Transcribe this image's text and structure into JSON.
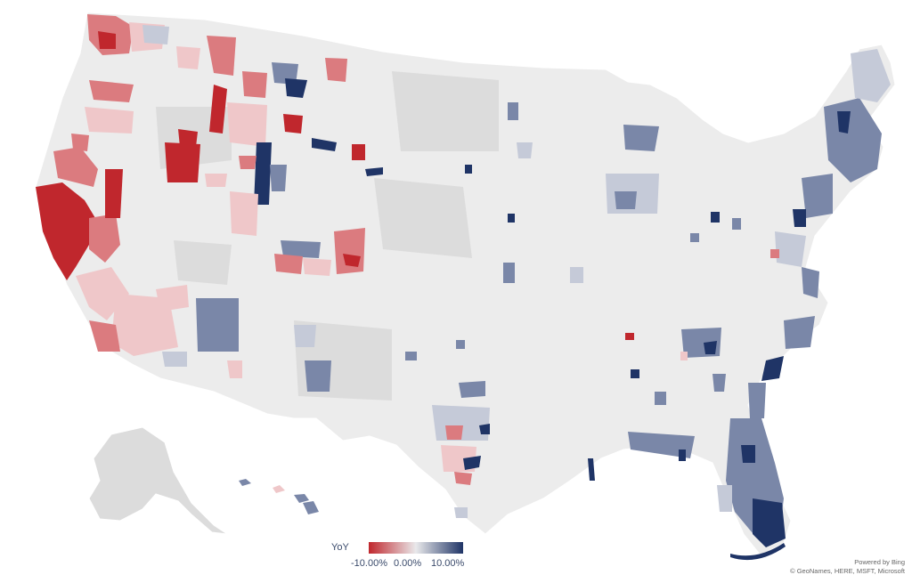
{
  "map": {
    "region": "United States",
    "measure": "YoY"
  },
  "legend": {
    "title": "YoY",
    "ticks": [
      "-10.00%",
      "0.00%",
      "10.00%"
    ],
    "colors": {
      "negative": "#c0272d",
      "neutral": "#e9e9eb",
      "positive": "#1f3466"
    }
  },
  "colors": {
    "no_data": "#dcdcdc",
    "base_land": "#ececec",
    "strong_negative": "#c0272d",
    "mid_negative": "#db7b7f",
    "light_negative": "#efc7c9",
    "light_positive": "#c5cad8",
    "mid_positive": "#7a87a8",
    "strong_positive": "#1f3466"
  },
  "attribution": {
    "line1": "Powered by Bing",
    "line2": "© GeoNames, HERE, MSFT, Microsoft"
  }
}
